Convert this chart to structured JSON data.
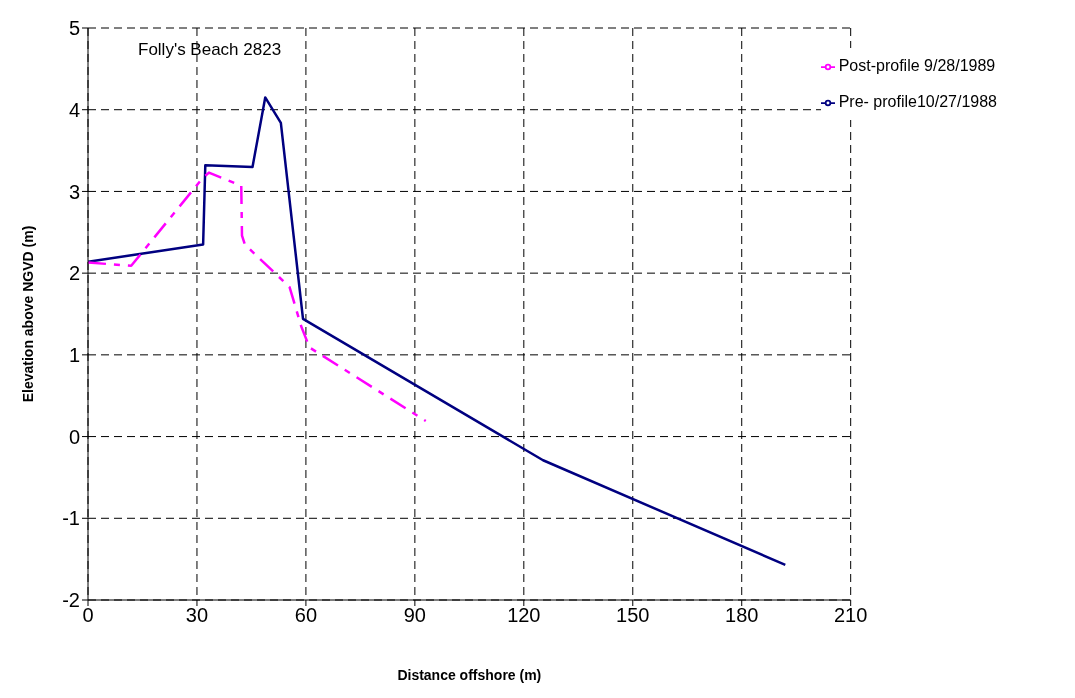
{
  "chart_data": {
    "type": "line",
    "title": "Folly's Beach 2823",
    "xlabel": "Distance offshore (m)",
    "ylabel": "Elevation above NGVD (m)",
    "xlim": [
      0,
      210
    ],
    "xticks": [
      0,
      30,
      60,
      90,
      120,
      150,
      180,
      210
    ],
    "ylim": [
      -2,
      5
    ],
    "yticks": [
      -2,
      -1,
      0,
      1,
      2,
      3,
      4,
      5
    ],
    "grid": true,
    "legend": "top right",
    "marker": "none",
    "series": [
      {
        "name": "Pre- profile10/27/1988",
        "color": "#000080",
        "line_style": "solid",
        "x": [
          0,
          31.7,
          32.3,
          45.3,
          48.8,
          53.1,
          59.2,
          125.3,
          192
        ],
        "values": [
          2.14,
          2.35,
          3.32,
          3.3,
          4.15,
          3.84,
          1.44,
          -0.29,
          -1.57
        ]
      },
      {
        "name": "Post-profile 9/28/1989",
        "color": "#ff00ff",
        "line_style": "dashed",
        "x": [
          0,
          11.9,
          31.5,
          33.3,
          42.2,
          42.4,
          43.2,
          55.5,
          58.7,
          61,
          93
        ],
        "values": [
          2.13,
          2.09,
          3.16,
          3.23,
          3.07,
          2.46,
          2.35,
          1.83,
          1.35,
          1.09,
          0.19
        ]
      }
    ]
  }
}
